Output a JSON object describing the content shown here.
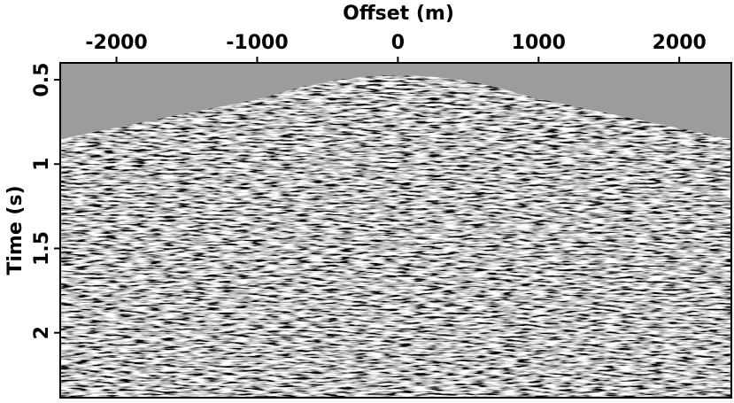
{
  "chart_data": {
    "type": "seismic",
    "xlabel": "Offset (m)",
    "ylabel": "Time (s)",
    "xlim": [
      -2400,
      2370
    ],
    "xticks": [
      -2000,
      -1000,
      0,
      1000,
      2000
    ],
    "ylim": [
      0.4,
      2.385
    ],
    "yticks": [
      0.5,
      1,
      1.5,
      2
    ],
    "y_inverted": true
  }
}
